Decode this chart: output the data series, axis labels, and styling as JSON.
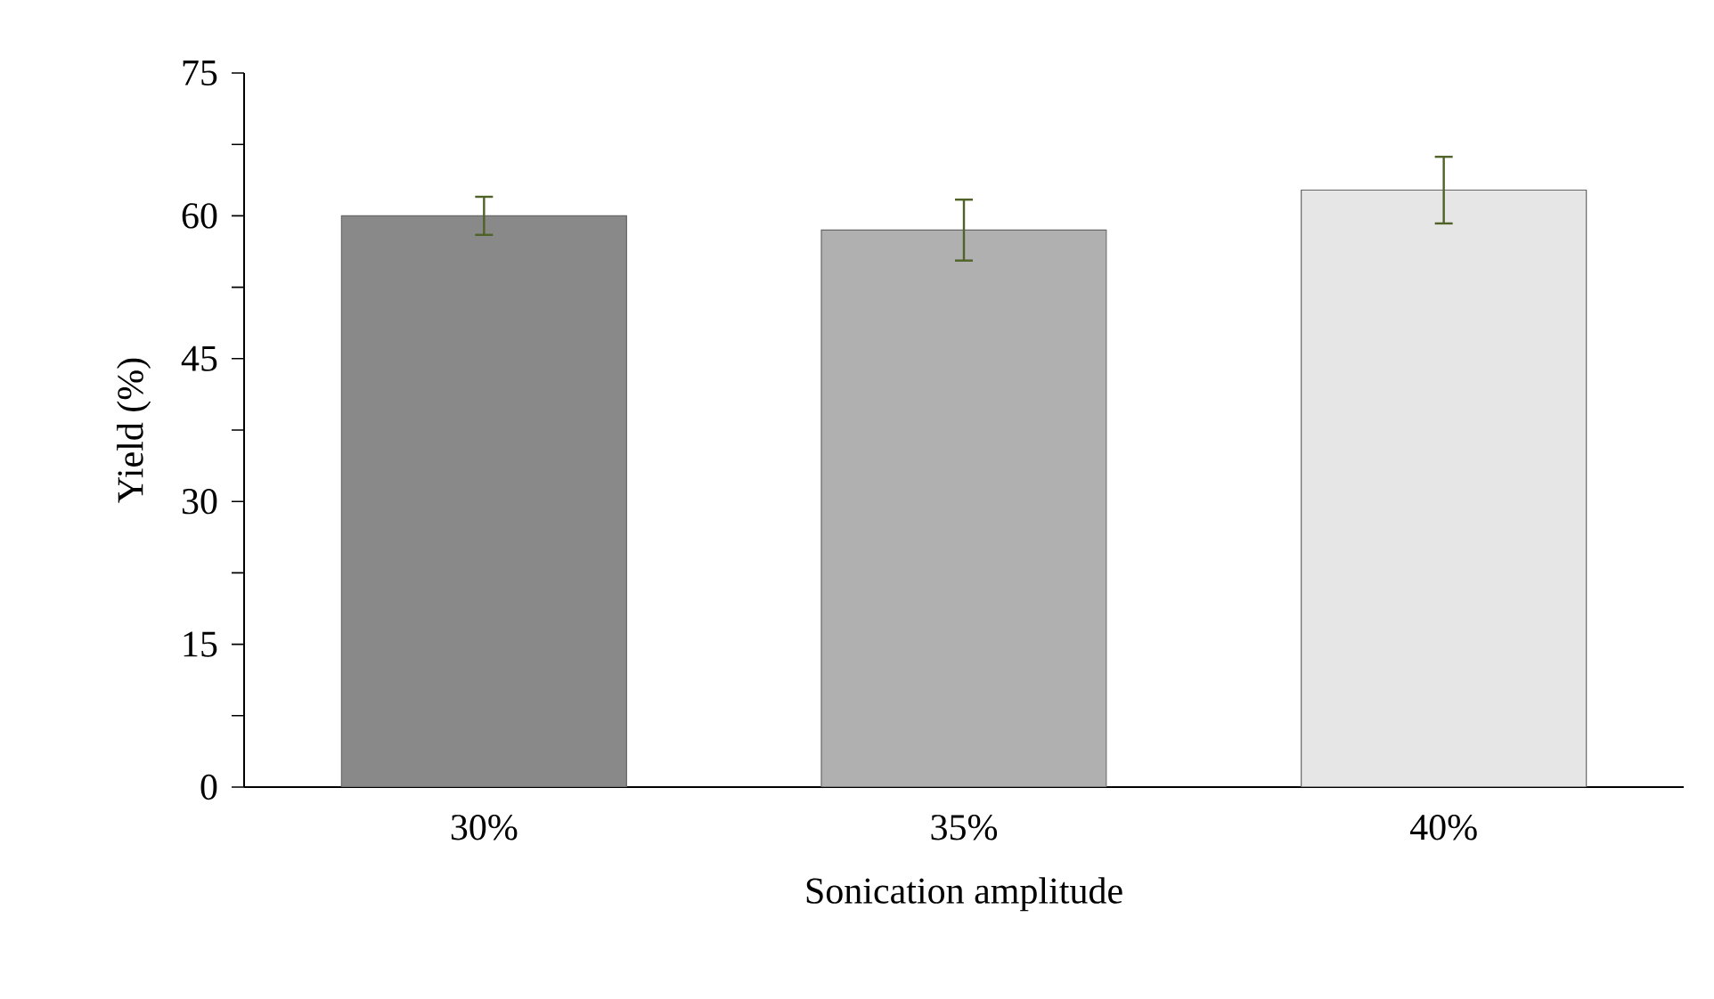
{
  "chart_data": {
    "type": "bar",
    "xlabel": "Sonication amplitude",
    "ylabel": "Yield (%)",
    "categories": [
      "30%",
      "35%",
      "40%"
    ],
    "values": [
      60.0,
      58.5,
      62.7
    ],
    "errors": [
      2.0,
      3.2,
      3.5
    ],
    "colors": [
      "#898989",
      "#b0b0b0",
      "#e6e6e6"
    ],
    "ylim": [
      0,
      75
    ],
    "yticks": [
      0,
      {
        "value": 7.5,
        "label": null
      },
      15,
      {
        "value": 22.5,
        "label": null
      },
      30,
      {
        "value": 37.5,
        "label": null
      },
      45,
      {
        "value": 52.5,
        "label": null
      },
      60,
      {
        "value": 67.5,
        "label": null
      },
      75
    ],
    "grid": false
  }
}
